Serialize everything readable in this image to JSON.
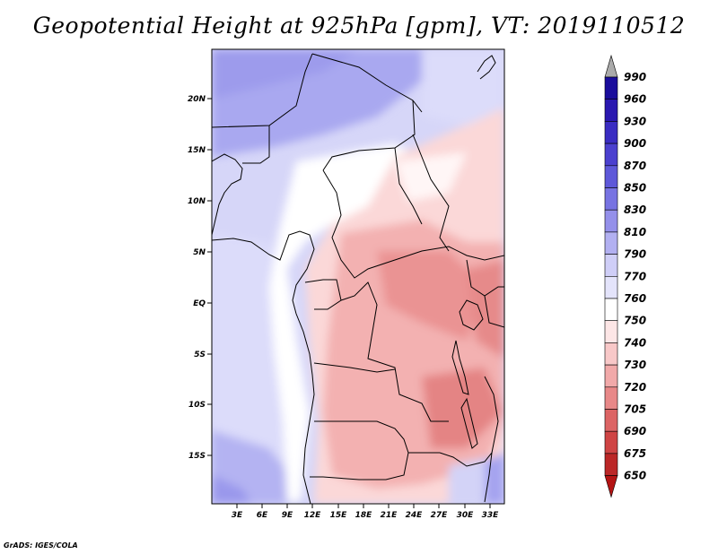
{
  "title": "Geopotential Height at 925hPa [gpm], VT: 2019110512",
  "credit": "GrADS: IGES/COLA",
  "map": {
    "lat_ticks": [
      "20N",
      "15N",
      "10N",
      "5N",
      "EQ",
      "5S",
      "10S",
      "15S"
    ],
    "lon_ticks": [
      "3E",
      "6E",
      "9E",
      "12E",
      "15E",
      "18E",
      "21E",
      "24E",
      "27E",
      "30E",
      "33E"
    ]
  },
  "colorbar": {
    "levels": [
      "990",
      "960",
      "930",
      "900",
      "870",
      "850",
      "830",
      "810",
      "790",
      "770",
      "760",
      "750",
      "740",
      "730",
      "720",
      "705",
      "690",
      "675",
      "650"
    ],
    "colors": {
      "990": "#1a0d9c",
      "960": "#2a18b0",
      "930": "#3a2cc2",
      "900": "#4b40cf",
      "870": "#5e58d9",
      "850": "#7773e2",
      "830": "#9490ea",
      "810": "#b2b0f1",
      "790": "#cfcef7",
      "770": "#e4e4fb",
      "760": "#ffffff",
      "750": "#fde6e6",
      "740": "#f8c8c8",
      "730": "#f1a9a9",
      "720": "#e88888",
      "705": "#dc6464",
      "690": "#cf4444",
      "675": "#bb2727",
      "650": "#9e1212",
      "top_arrow": "#aaaaaa",
      "bottom_arrow": "#b41414"
    }
  }
}
